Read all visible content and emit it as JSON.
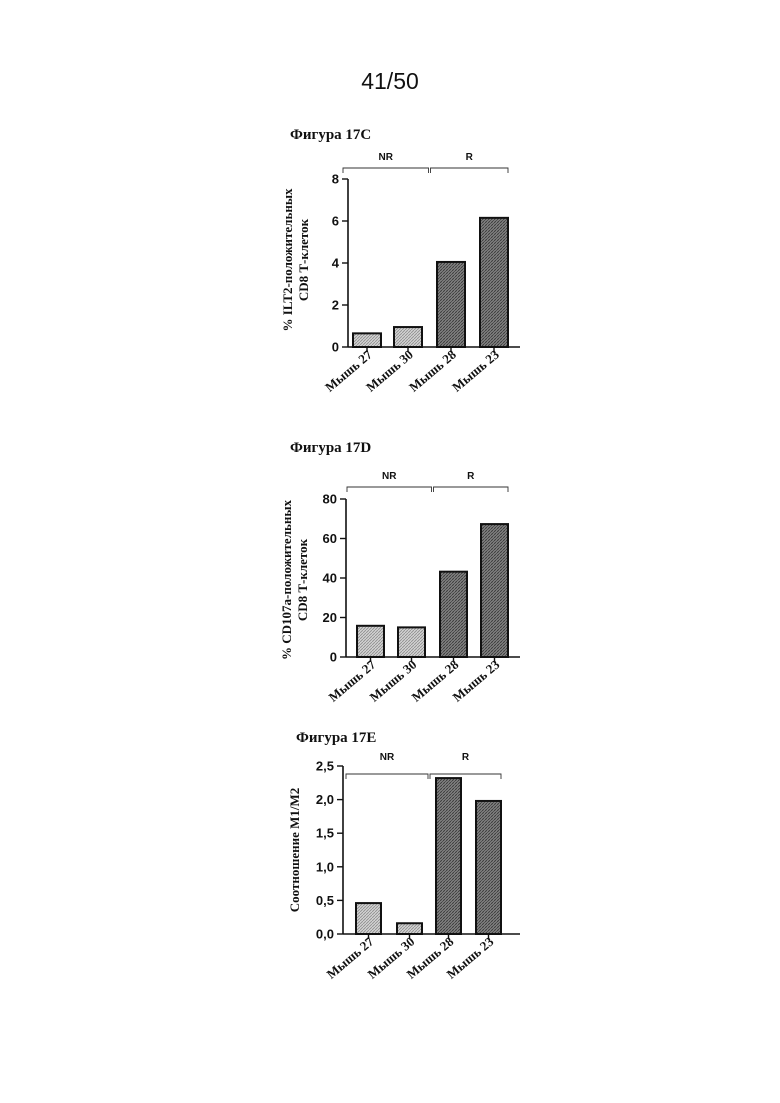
{
  "page_number": "41/50",
  "chart_data": [
    {
      "type": "bar",
      "title": "Фигура 17C",
      "ylabel_lines": [
        "% ILT2-положительных",
        "CD8 Т-клеток"
      ],
      "xlabel": "",
      "categories": [
        "Мышь 27",
        "Мышь 30",
        "Мышь 28",
        "Мышь 23"
      ],
      "values": [
        0.65,
        0.95,
        4.05,
        6.15
      ],
      "ylim": [
        0,
        8
      ],
      "yticks": [
        "0",
        "2",
        "4",
        "6",
        "8"
      ],
      "groups": [
        {
          "label": "NR",
          "categories": [
            "Мышь 27",
            "Мышь 30"
          ]
        },
        {
          "label": "R",
          "categories": [
            "Мышь 28",
            "Мышь 23"
          ]
        }
      ],
      "colors": {
        "NR": "#c4c4c4",
        "R": "#8a8a8a"
      }
    },
    {
      "type": "bar",
      "title": "Фигура 17D",
      "ylabel_lines": [
        "% CD107a-положительных",
        "CD8 Т-клеток"
      ],
      "xlabel": "",
      "categories": [
        "Мышь 27",
        "Мышь 30",
        "Мышь 28",
        "Мышь 23"
      ],
      "values": [
        15.8,
        15.0,
        43.2,
        67.3
      ],
      "ylim": [
        0,
        80
      ],
      "yticks": [
        "0",
        "20",
        "40",
        "60",
        "80"
      ],
      "groups": [
        {
          "label": "NR",
          "categories": [
            "Мышь 27",
            "Мышь 30"
          ]
        },
        {
          "label": "R",
          "categories": [
            "Мышь 28",
            "Мышь 23"
          ]
        }
      ],
      "colors": {
        "NR": "#c4c4c4",
        "R": "#8a8a8a"
      }
    },
    {
      "type": "bar",
      "title": "Фигура 17E",
      "ylabel_lines": [
        "Соотношение M1/M2"
      ],
      "xlabel": "",
      "categories": [
        "Мышь 27",
        "Мышь 30",
        "Мышь 28",
        "Мышь 23"
      ],
      "values": [
        0.46,
        0.16,
        2.32,
        1.98
      ],
      "ylim": [
        0,
        2.5
      ],
      "yticks": [
        "0,0",
        "0,5",
        "1,0",
        "1,5",
        "2,0",
        "2,5"
      ],
      "groups": [
        {
          "label": "NR",
          "categories": [
            "Мышь 27",
            "Мышь 30"
          ]
        },
        {
          "label": "R",
          "categories": [
            "Мышь 28",
            "Мышь 23"
          ]
        }
      ],
      "colors": {
        "NR": "#c4c4c4",
        "R": "#8a8a8a"
      }
    }
  ]
}
